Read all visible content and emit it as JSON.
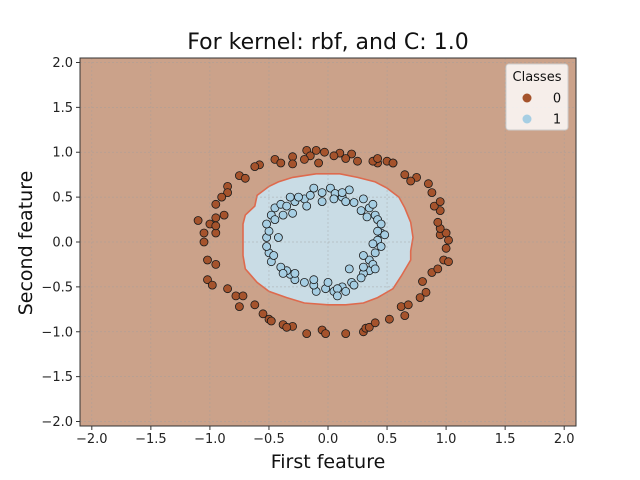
{
  "chart_data": {
    "type": "scatter",
    "title": "For kernel: rbf, and C: 1.0",
    "xlabel": "First feature",
    "ylabel": "Second feature",
    "xlim": [
      -2.1,
      2.1
    ],
    "ylim": [
      -2.05,
      2.05
    ],
    "xticks": [
      -2.0,
      -1.5,
      -1.0,
      -0.5,
      0.0,
      0.5,
      1.0,
      1.5,
      2.0
    ],
    "yticks": [
      -2.0,
      -1.5,
      -1.0,
      -0.5,
      0.0,
      0.5,
      1.0,
      1.5,
      2.0
    ],
    "xtick_labels": [
      "−2.0",
      "−1.5",
      "−1.0",
      "−0.5",
      "0.0",
      "0.5",
      "1.0",
      "1.5",
      "2.0"
    ],
    "ytick_labels": [
      "−2.0",
      "−1.5",
      "−1.0",
      "−0.5",
      "0.0",
      "0.5",
      "1.0",
      "1.5",
      "2.0"
    ],
    "grid": true,
    "legend": {
      "title": "Classes",
      "placement": "top-right"
    },
    "background_region": {
      "class": "0",
      "color": "#cba28a"
    },
    "decision_region": {
      "class": "1",
      "fill": "#c9dce5",
      "edge": "#de6a4e",
      "boundary": [
        [
          -0.72,
          0.1
        ],
        [
          -0.72,
          0.2
        ],
        [
          -0.7,
          0.3
        ],
        [
          -0.62,
          0.4
        ],
        [
          -0.6,
          0.52
        ],
        [
          -0.5,
          0.62
        ],
        [
          -0.42,
          0.67
        ],
        [
          -0.3,
          0.72
        ],
        [
          -0.1,
          0.76
        ],
        [
          0.1,
          0.76
        ],
        [
          0.25,
          0.72
        ],
        [
          0.4,
          0.67
        ],
        [
          0.5,
          0.6
        ],
        [
          0.6,
          0.5
        ],
        [
          0.65,
          0.38
        ],
        [
          0.7,
          0.22
        ],
        [
          0.72,
          0.05
        ],
        [
          0.7,
          -0.1
        ],
        [
          0.7,
          -0.2
        ],
        [
          0.62,
          -0.38
        ],
        [
          0.55,
          -0.52
        ],
        [
          0.42,
          -0.62
        ],
        [
          0.3,
          -0.68
        ],
        [
          0.15,
          -0.7
        ],
        [
          0.0,
          -0.7
        ],
        [
          -0.2,
          -0.68
        ],
        [
          -0.35,
          -0.62
        ],
        [
          -0.5,
          -0.55
        ],
        [
          -0.6,
          -0.45
        ],
        [
          -0.7,
          -0.3
        ],
        [
          -0.72,
          -0.15
        ],
        [
          -0.72,
          -0.05
        ]
      ]
    },
    "series": [
      {
        "name": "0",
        "color": "#a5532c",
        "points": [
          [
            -0.18,
            1.02
          ],
          [
            -0.1,
            1.02
          ],
          [
            -0.03,
            1.0
          ],
          [
            0.1,
            0.99
          ],
          [
            0.2,
            0.98
          ],
          [
            -0.3,
            0.95
          ],
          [
            -0.45,
            0.92
          ],
          [
            -0.58,
            0.86
          ],
          [
            -0.62,
            0.84
          ],
          [
            -0.75,
            0.74
          ],
          [
            -0.7,
            0.71
          ],
          [
            -0.85,
            0.62
          ],
          [
            -0.85,
            0.55
          ],
          [
            -0.9,
            0.5
          ],
          [
            -0.95,
            0.42
          ],
          [
            -0.88,
            0.3
          ],
          [
            -0.95,
            0.27
          ],
          [
            -1.0,
            0.2
          ],
          [
            -1.1,
            0.24
          ],
          [
            -1.05,
            0.1
          ],
          [
            -0.95,
            0.1
          ],
          [
            -1.05,
            0.0
          ],
          [
            -1.02,
            -0.2
          ],
          [
            -0.95,
            -0.25
          ],
          [
            -1.02,
            -0.42
          ],
          [
            -0.98,
            -0.48
          ],
          [
            -0.85,
            -0.52
          ],
          [
            -0.78,
            -0.6
          ],
          [
            -0.72,
            -0.6
          ],
          [
            -0.75,
            -0.72
          ],
          [
            -0.62,
            -0.7
          ],
          [
            -0.55,
            -0.8
          ],
          [
            -0.5,
            -0.86
          ],
          [
            -0.48,
            -0.88
          ],
          [
            -0.38,
            -0.92
          ],
          [
            -0.3,
            -0.94
          ],
          [
            -0.35,
            -0.95
          ],
          [
            -0.18,
            -1.02
          ],
          [
            -0.05,
            -0.98
          ],
          [
            -0.02,
            -1.02
          ],
          [
            0.15,
            -1.02
          ],
          [
            0.3,
            -1.0
          ],
          [
            0.32,
            -0.96
          ],
          [
            0.35,
            -0.95
          ],
          [
            0.4,
            -0.9
          ],
          [
            0.52,
            -0.86
          ],
          [
            0.62,
            -0.72
          ],
          [
            0.68,
            -0.7
          ],
          [
            0.65,
            -0.82
          ],
          [
            0.78,
            -0.62
          ],
          [
            0.83,
            -0.56
          ],
          [
            0.8,
            -0.44
          ],
          [
            0.88,
            -0.34
          ],
          [
            0.93,
            -0.3
          ],
          [
            0.98,
            -0.2
          ],
          [
            1.02,
            -0.22
          ],
          [
            1.0,
            -0.07
          ],
          [
            1.02,
            0.02
          ],
          [
            0.95,
            0.08
          ],
          [
            1.0,
            0.1
          ],
          [
            0.95,
            0.15
          ],
          [
            0.93,
            0.22
          ],
          [
            0.95,
            0.35
          ],
          [
            0.9,
            0.4
          ],
          [
            0.95,
            0.45
          ],
          [
            0.88,
            0.55
          ],
          [
            0.85,
            0.65
          ],
          [
            0.75,
            0.72
          ],
          [
            0.7,
            0.68
          ],
          [
            0.65,
            0.75
          ],
          [
            0.55,
            0.88
          ],
          [
            0.5,
            0.9
          ],
          [
            0.42,
            0.88
          ],
          [
            0.38,
            0.9
          ],
          [
            0.25,
            0.9
          ],
          [
            0.05,
            0.96
          ],
          [
            -0.15,
            0.96
          ],
          [
            -0.2,
            0.92
          ],
          [
            -0.3,
            0.87
          ],
          [
            -0.4,
            0.88
          ],
          [
            -0.08,
            0.88
          ],
          [
            0.15,
            0.93
          ],
          [
            0.42,
            0.93
          ],
          [
            -0.95,
            0.18
          ],
          [
            0.55,
            0.88
          ]
        ]
      },
      {
        "name": "1",
        "color": "#a6cee3",
        "points": [
          [
            -0.12,
            0.6
          ],
          [
            -0.05,
            0.55
          ],
          [
            0.02,
            0.6
          ],
          [
            0.06,
            0.54
          ],
          [
            0.12,
            0.5
          ],
          [
            0.18,
            0.58
          ],
          [
            0.22,
            0.44
          ],
          [
            0.3,
            0.48
          ],
          [
            0.35,
            0.38
          ],
          [
            0.4,
            0.3
          ],
          [
            0.42,
            0.25
          ],
          [
            0.45,
            0.1
          ],
          [
            0.48,
            0.08
          ],
          [
            0.42,
            0.02
          ],
          [
            0.38,
            -0.02
          ],
          [
            0.4,
            -0.12
          ],
          [
            0.35,
            -0.2
          ],
          [
            0.35,
            -0.32
          ],
          [
            0.3,
            -0.35
          ],
          [
            0.28,
            -0.4
          ],
          [
            0.2,
            -0.45
          ],
          [
            0.12,
            -0.5
          ],
          [
            0.05,
            -0.55
          ],
          [
            -0.02,
            -0.52
          ],
          [
            -0.1,
            -0.55
          ],
          [
            -0.12,
            -0.48
          ],
          [
            -0.2,
            -0.45
          ],
          [
            -0.28,
            -0.42
          ],
          [
            -0.32,
            -0.36
          ],
          [
            -0.35,
            -0.32
          ],
          [
            -0.4,
            -0.28
          ],
          [
            -0.48,
            -0.22
          ],
          [
            -0.5,
            -0.12
          ],
          [
            -0.52,
            -0.05
          ],
          [
            -0.52,
            0.05
          ],
          [
            -0.5,
            0.12
          ],
          [
            -0.52,
            0.2
          ],
          [
            -0.48,
            0.3
          ],
          [
            -0.45,
            0.38
          ],
          [
            -0.4,
            0.42
          ],
          [
            -0.35,
            0.4
          ],
          [
            -0.28,
            0.45
          ],
          [
            -0.2,
            0.48
          ],
          [
            -0.15,
            0.52
          ],
          [
            -0.25,
            0.5
          ],
          [
            -0.3,
            0.32
          ],
          [
            -0.38,
            0.3
          ],
          [
            -0.45,
            0.25
          ],
          [
            -0.42,
            0.05
          ],
          [
            -0.38,
            -0.35
          ],
          [
            -0.28,
            -0.35
          ],
          [
            -0.12,
            -0.42
          ],
          [
            0.08,
            -0.52
          ],
          [
            0.15,
            -0.55
          ],
          [
            0.22,
            -0.48
          ],
          [
            0.3,
            -0.28
          ],
          [
            0.38,
            -0.25
          ],
          [
            0.45,
            -0.05
          ],
          [
            0.45,
            0.2
          ],
          [
            0.38,
            0.42
          ],
          [
            0.28,
            0.35
          ],
          [
            0.15,
            0.45
          ],
          [
            0.05,
            0.48
          ],
          [
            -0.05,
            0.45
          ],
          [
            -0.18,
            0.4
          ],
          [
            0.08,
            -0.6
          ],
          [
            0.0,
            -0.45
          ],
          [
            0.18,
            -0.3
          ],
          [
            0.12,
            0.55
          ],
          [
            -0.32,
            0.5
          ],
          [
            0.4,
            -0.3
          ],
          [
            0.3,
            -0.15
          ],
          [
            0.33,
            0.28
          ],
          [
            0.42,
            0.12
          ],
          [
            -0.46,
            -0.15
          ]
        ]
      }
    ]
  }
}
